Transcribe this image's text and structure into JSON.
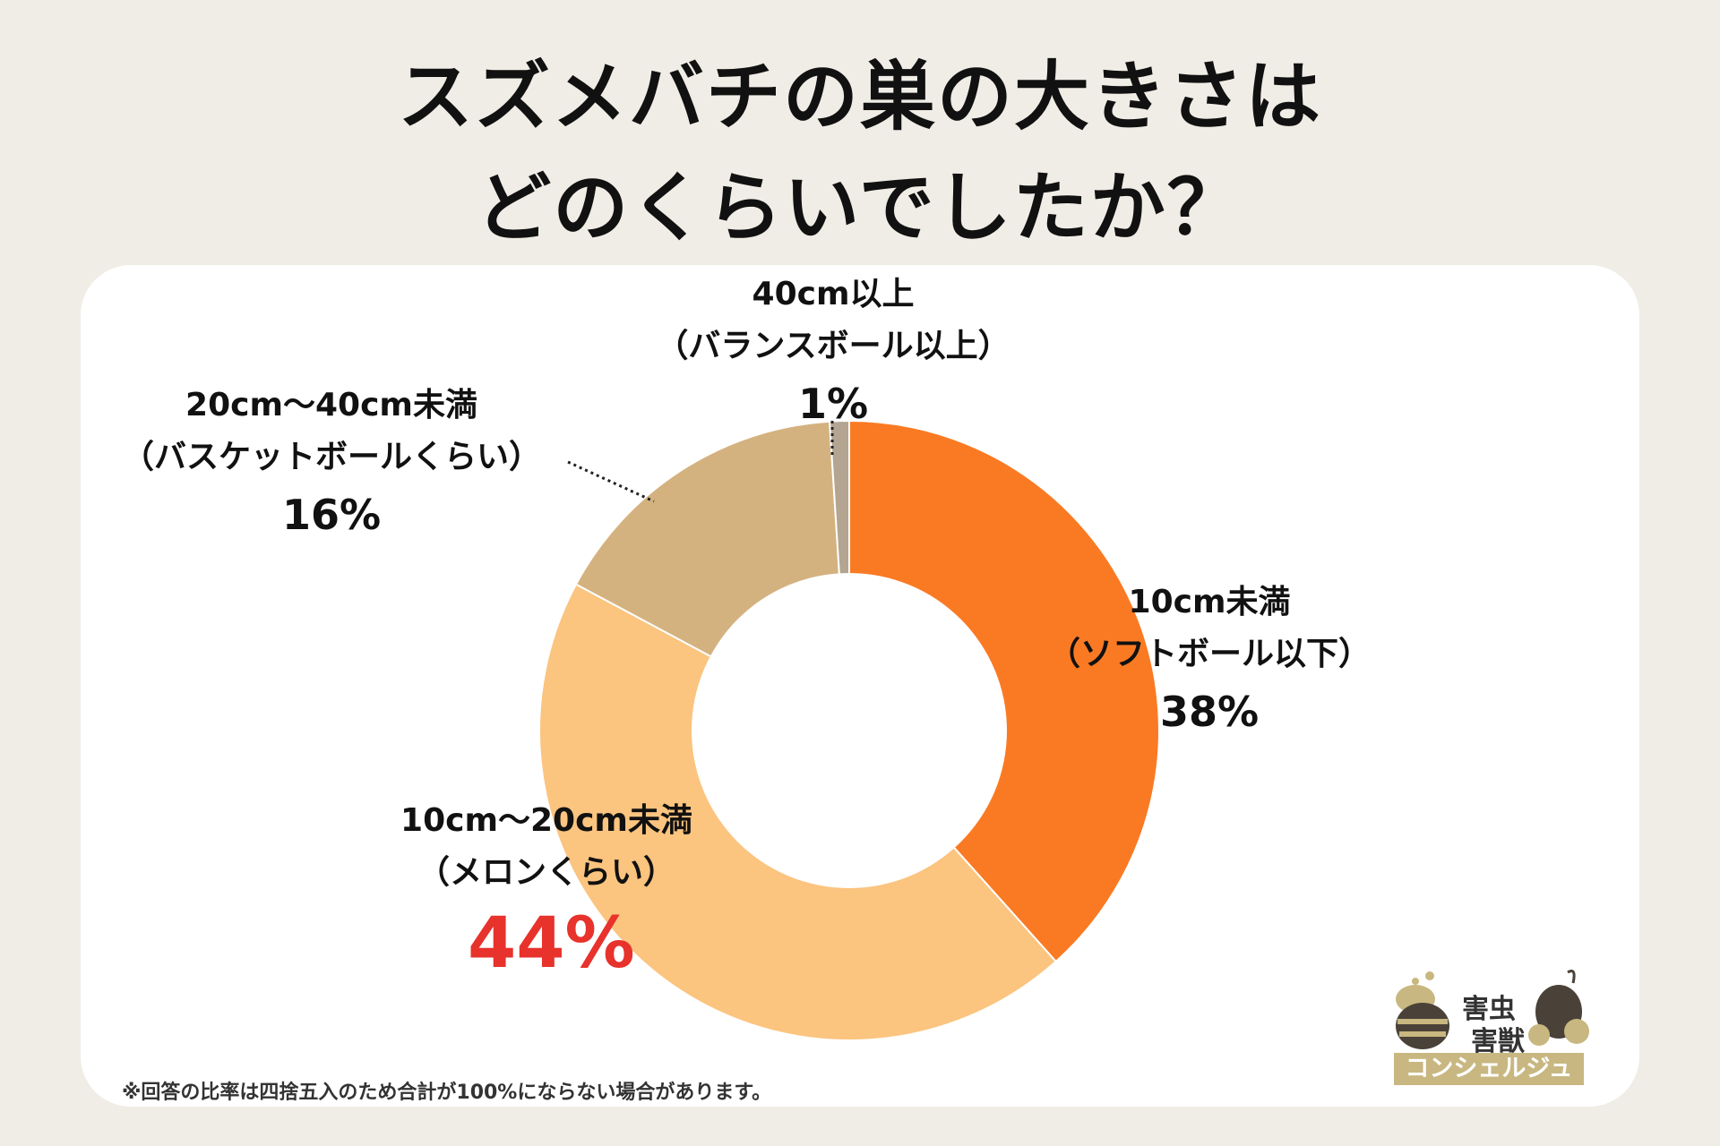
{
  "header": {
    "title_line1": "スズメバチの巣の大きさは",
    "title_line2": "どのくらいでしたか？"
  },
  "colors": {
    "background": "#f0ede6",
    "card": "#ffffff",
    "highlight_text": "#e8322c"
  },
  "chart_data": {
    "type": "pie",
    "variant": "donut",
    "slices": [
      {
        "category": "10cm未満",
        "sublabel": "（ソフトボール以下）",
        "value": 38,
        "value_label": "38%",
        "color": "#fa7a23"
      },
      {
        "category": "10cm〜20cm未満",
        "sublabel": "（メロンくらい）",
        "value": 44,
        "value_label": "44%",
        "color": "#fbc47f",
        "highlight": true
      },
      {
        "category": "20cm〜40cm未満",
        "sublabel": "（バスケットボールくらい）",
        "value": 16,
        "value_label": "16%",
        "color": "#d4b27f"
      },
      {
        "category": "40cm以上",
        "sublabel": "（バランスボール以上）",
        "value": 1,
        "value_label": "1%",
        "color": "#b3a591"
      }
    ],
    "order": "clockwise from top"
  },
  "footnote": "※回答の比率は四捨五入のため合計が100%にならない場合があります。",
  "logo": {
    "line1": "害虫",
    "line2": "害獣",
    "band": "コンシェルジュ",
    "icons": [
      "bee-icon",
      "mouse-icon"
    ]
  }
}
